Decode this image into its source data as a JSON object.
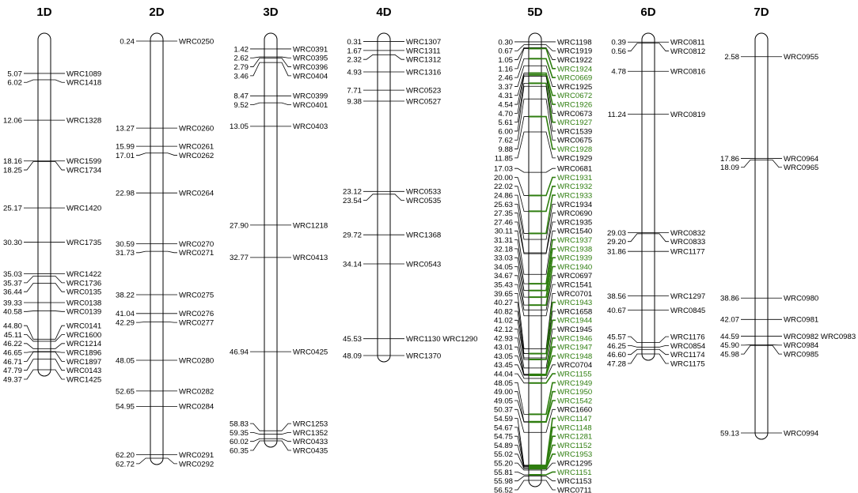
{
  "title": "",
  "colors": {
    "highlight": "#2e7d0f",
    "default": "#000000"
  },
  "chromosomes": [
    {
      "name": "1D",
      "loci": [
        {
          "pos": "5.07",
          "marker": "WRC1089"
        },
        {
          "pos": "6.02",
          "marker": "WRC1418"
        },
        {
          "pos": "12.06",
          "marker": "WRC1328"
        },
        {
          "pos": "18.16",
          "marker": "WRC1599"
        },
        {
          "pos": "18.25",
          "marker": "WRC1734"
        },
        {
          "pos": "25.17",
          "marker": "WRC1420"
        },
        {
          "pos": "30.30",
          "marker": "WRC1735"
        },
        {
          "pos": "35.03",
          "marker": "WRC1422"
        },
        {
          "pos": "35.37",
          "marker": "WRC1736"
        },
        {
          "pos": "36.44",
          "marker": "WRC0135"
        },
        {
          "pos": "39.33",
          "marker": "WRC0138"
        },
        {
          "pos": "40.58",
          "marker": "WRC0139"
        },
        {
          "pos": "44.80",
          "marker": "WRC0141"
        },
        {
          "pos": "45.11",
          "marker": "WRC1600"
        },
        {
          "pos": "46.22",
          "marker": "WRC1214"
        },
        {
          "pos": "46.65",
          "marker": "WRC1896"
        },
        {
          "pos": "46.71",
          "marker": "WRC1897"
        },
        {
          "pos": "47.79",
          "marker": "WRC0143"
        },
        {
          "pos": "49.37",
          "marker": "WRC1425"
        }
      ]
    },
    {
      "name": "2D",
      "loci": [
        {
          "pos": "0.24",
          "marker": "WRC0250"
        },
        {
          "pos": "13.27",
          "marker": "WRC0260"
        },
        {
          "pos": "15.99",
          "marker": "WRC0261"
        },
        {
          "pos": "17.01",
          "marker": "WRC0262"
        },
        {
          "pos": "22.98",
          "marker": "WRC0264"
        },
        {
          "pos": "30.59",
          "marker": "WRC0270"
        },
        {
          "pos": "31.73",
          "marker": "WRC0271"
        },
        {
          "pos": "38.22",
          "marker": "WRC0275"
        },
        {
          "pos": "41.04",
          "marker": "WRC0276"
        },
        {
          "pos": "42.29",
          "marker": "WRC0277"
        },
        {
          "pos": "48.05",
          "marker": "WRC0280"
        },
        {
          "pos": "52.65",
          "marker": "WRC0282"
        },
        {
          "pos": "54.95",
          "marker": "WRC0284"
        },
        {
          "pos": "62.20",
          "marker": "WRC0291"
        },
        {
          "pos": "62.72",
          "marker": "WRC0292"
        }
      ]
    },
    {
      "name": "3D",
      "loci": [
        {
          "pos": "1.42",
          "marker": "WRC0391"
        },
        {
          "pos": "2.62",
          "marker": "WRC0395"
        },
        {
          "pos": "2.79",
          "marker": "WRC0396"
        },
        {
          "pos": "3.46",
          "marker": "WRC0404"
        },
        {
          "pos": "8.47",
          "marker": "WRC0399"
        },
        {
          "pos": "9.52",
          "marker": "WRC0401"
        },
        {
          "pos": "13.05",
          "marker": "WRC0403"
        },
        {
          "pos": "27.90",
          "marker": "WRC1218"
        },
        {
          "pos": "32.77",
          "marker": "WRC0413"
        },
        {
          "pos": "46.94",
          "marker": "WRC0425"
        },
        {
          "pos": "58.83",
          "marker": "WRC1253"
        },
        {
          "pos": "59.35",
          "marker": "WRC1352"
        },
        {
          "pos": "60.02",
          "marker": "WRC0433"
        },
        {
          "pos": "60.35",
          "marker": "WRC0435"
        }
      ]
    },
    {
      "name": "4D",
      "loci": [
        {
          "pos": "0.31",
          "marker": "WRC1307"
        },
        {
          "pos": "1.67",
          "marker": "WRC1311"
        },
        {
          "pos": "2.32",
          "marker": "WRC1312"
        },
        {
          "pos": "4.93",
          "marker": "WRC1316"
        },
        {
          "pos": "7.71",
          "marker": "WRC0523"
        },
        {
          "pos": "9.38",
          "marker": "WRC0527"
        },
        {
          "pos": "23.12",
          "marker": "WRC0533"
        },
        {
          "pos": "23.54",
          "marker": "WRC0535"
        },
        {
          "pos": "29.72",
          "marker": "WRC1368"
        },
        {
          "pos": "34.14",
          "marker": "WRC0543"
        },
        {
          "pos": "45.53",
          "marker": "WRC1130 WRC1290"
        },
        {
          "pos": "48.09",
          "marker": "WRC1370"
        }
      ]
    },
    {
      "name": "5D",
      "loci": [
        {
          "pos": "0.30",
          "marker": "WRC1198"
        },
        {
          "pos": "0.67",
          "marker": "WRC1919"
        },
        {
          "pos": "1.05",
          "marker": "WRC1922"
        },
        {
          "pos": "1.16",
          "marker": "WRC1924",
          "hl": true
        },
        {
          "pos": "2.46",
          "marker": "WRC0669",
          "hl": true
        },
        {
          "pos": "3.37",
          "marker": "WRC1925"
        },
        {
          "pos": "4.31",
          "marker": "WRC0672",
          "hl": true
        },
        {
          "pos": "4.54",
          "marker": "WRC1926",
          "hl": true
        },
        {
          "pos": "4.70",
          "marker": "WRC0673"
        },
        {
          "pos": "5.61",
          "marker": "WRC1927",
          "hl": true
        },
        {
          "pos": "6.00",
          "marker": "WRC1539"
        },
        {
          "pos": "7.62",
          "marker": "WRC0675"
        },
        {
          "pos": "9.88",
          "marker": "WRC1928",
          "hl": true
        },
        {
          "pos": "11.85",
          "marker": "WRC1929"
        },
        {
          "pos": "17.03",
          "marker": "WRC0681"
        },
        {
          "pos": "20.00",
          "marker": "WRC1931",
          "hl": true
        },
        {
          "pos": "22.02",
          "marker": "WRC1932",
          "hl": true
        },
        {
          "pos": "24.86",
          "marker": "WRC1933",
          "hl": true
        },
        {
          "pos": "25.63",
          "marker": "WRC1934"
        },
        {
          "pos": "27.35",
          "marker": "WRC0690"
        },
        {
          "pos": "27.46",
          "marker": "WRC1935"
        },
        {
          "pos": "30.11",
          "marker": "WRC1540"
        },
        {
          "pos": "31.31",
          "marker": "WRC1937",
          "hl": true
        },
        {
          "pos": "32.18",
          "marker": "WRC1938",
          "hl": true
        },
        {
          "pos": "33.03",
          "marker": "WRC1939",
          "hl": true
        },
        {
          "pos": "34.05",
          "marker": "WRC1940",
          "hl": true
        },
        {
          "pos": "34.67",
          "marker": "WRC0697"
        },
        {
          "pos": "35.43",
          "marker": "WRC1541"
        },
        {
          "pos": "39.65",
          "marker": "WRC0701"
        },
        {
          "pos": "40.27",
          "marker": "WRC1943",
          "hl": true
        },
        {
          "pos": "40.82",
          "marker": "WRC1658"
        },
        {
          "pos": "41.02",
          "marker": "WRC1944",
          "hl": true
        },
        {
          "pos": "42.12",
          "marker": "WRC1945"
        },
        {
          "pos": "42.93",
          "marker": "WRC1946",
          "hl": true
        },
        {
          "pos": "43.01",
          "marker": "WRC1947",
          "hl": true
        },
        {
          "pos": "43.05",
          "marker": "WRC1948",
          "hl": true
        },
        {
          "pos": "43.45",
          "marker": "WRC0704"
        },
        {
          "pos": "44.04",
          "marker": "WRC1155",
          "hl": true
        },
        {
          "pos": "48.05",
          "marker": "WRC1949",
          "hl": true
        },
        {
          "pos": "49.00",
          "marker": "WRC1950",
          "hl": true
        },
        {
          "pos": "49.05",
          "marker": "WRC1542",
          "hl": true
        },
        {
          "pos": "50.37",
          "marker": "WRC1660"
        },
        {
          "pos": "54.59",
          "marker": "WRC1147",
          "hl": true
        },
        {
          "pos": "54.67",
          "marker": "WRC1148",
          "hl": true
        },
        {
          "pos": "54.75",
          "marker": "WRC1281",
          "hl": true
        },
        {
          "pos": "54.89",
          "marker": "WRC1152",
          "hl": true
        },
        {
          "pos": "55.02",
          "marker": "WRC1953",
          "hl": true
        },
        {
          "pos": "55.20",
          "marker": "WRC1295"
        },
        {
          "pos": "55.81",
          "marker": "WRC1151",
          "hl": true
        },
        {
          "pos": "55.98",
          "marker": "WRC1153"
        },
        {
          "pos": "56.52",
          "marker": "WRC0711"
        }
      ]
    },
    {
      "name": "6D",
      "loci": [
        {
          "pos": "0.39",
          "marker": "WRC0811"
        },
        {
          "pos": "0.56",
          "marker": "WRC0812"
        },
        {
          "pos": "4.78",
          "marker": "WRC0816"
        },
        {
          "pos": "11.24",
          "marker": "WRC0819"
        },
        {
          "pos": "29.03",
          "marker": "WRC0832"
        },
        {
          "pos": "29.20",
          "marker": "WRC0833"
        },
        {
          "pos": "31.86",
          "marker": "WRC1177"
        },
        {
          "pos": "38.56",
          "marker": "WRC1297"
        },
        {
          "pos": "40.67",
          "marker": "WRC0845"
        },
        {
          "pos": "45.57",
          "marker": "WRC1176"
        },
        {
          "pos": "46.25",
          "marker": "WRC0854"
        },
        {
          "pos": "46.60",
          "marker": "WRC1174"
        },
        {
          "pos": "47.28",
          "marker": "WRC1175"
        }
      ]
    },
    {
      "name": "7D",
      "loci": [
        {
          "pos": "2.58",
          "marker": "WRC0955"
        },
        {
          "pos": "17.86",
          "marker": "WRC0964"
        },
        {
          "pos": "18.09",
          "marker": "WRC0965"
        },
        {
          "pos": "38.86",
          "marker": "WRC0980"
        },
        {
          "pos": "42.07",
          "marker": "WRC0981"
        },
        {
          "pos": "44.59",
          "marker": "WRC0982 WRC0983"
        },
        {
          "pos": "45.90",
          "marker": "WRC0984"
        },
        {
          "pos": "45.98",
          "marker": "WRC0985"
        },
        {
          "pos": "59.13",
          "marker": "WRC0994"
        }
      ]
    }
  ]
}
